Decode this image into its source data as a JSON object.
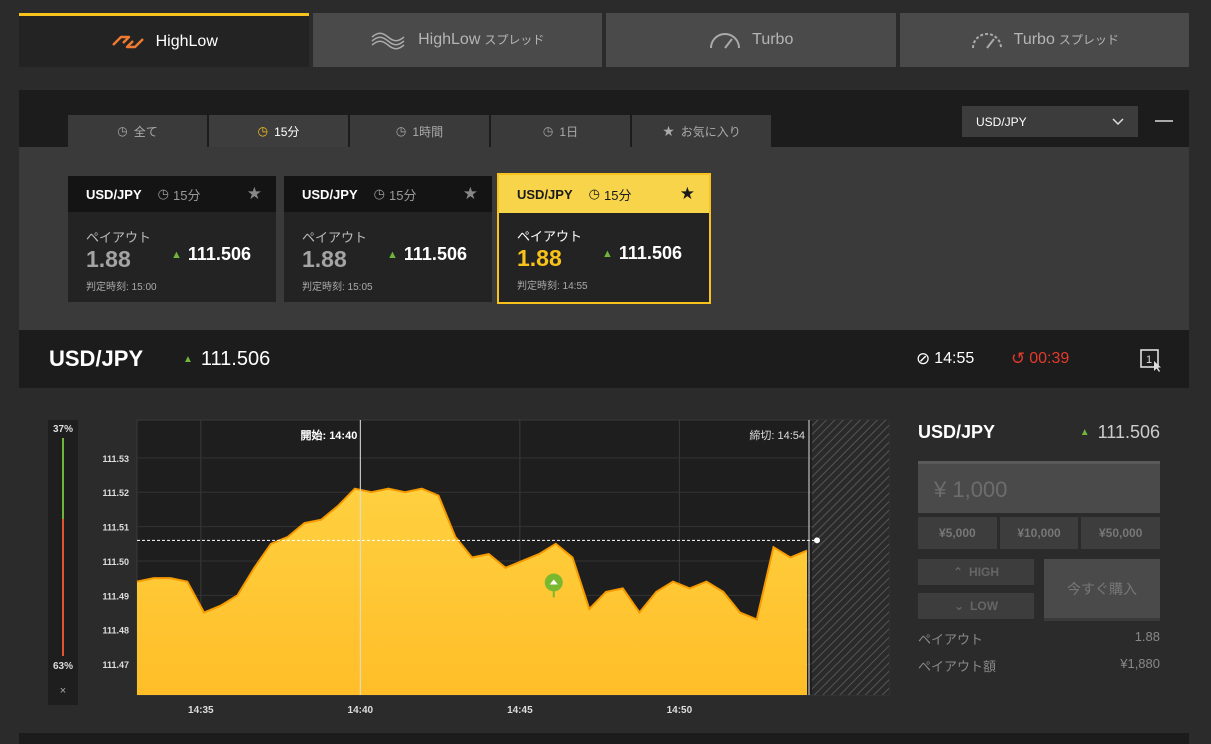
{
  "top_tabs": [
    {
      "label": "HighLow",
      "suffix": "",
      "icon": "highlow-icon",
      "active": true
    },
    {
      "label": "HighLow",
      "suffix": "スプレッド",
      "icon": "highlow-spread-icon",
      "active": false
    },
    {
      "label": "Turbo",
      "suffix": "",
      "icon": "turbo-speedometer-icon",
      "active": false
    },
    {
      "label": "Turbo",
      "suffix": "スプレッド",
      "icon": "turbo-spread-speedometer-icon",
      "active": false
    }
  ],
  "filter_tabs": [
    {
      "label": "全て",
      "icon": "clock-icon"
    },
    {
      "label": "15分",
      "icon": "clock-icon",
      "active": true
    },
    {
      "label": "1時間",
      "icon": "clock-icon"
    },
    {
      "label": "1日",
      "icon": "clock-icon"
    },
    {
      "label": "お気に入り",
      "icon": "star-icon"
    }
  ],
  "pair_select": {
    "value": "USD/JPY"
  },
  "cards": [
    {
      "pair": "USD/JPY",
      "duration": "15分",
      "payout_label": "ペイアウト",
      "payout": "1.88",
      "rate": "111.506",
      "expiry": "判定時刻: 15:00"
    },
    {
      "pair": "USD/JPY",
      "duration": "15分",
      "payout_label": "ペイアウト",
      "payout": "1.88",
      "rate": "111.506",
      "expiry": "判定時刻: 15:05"
    },
    {
      "pair": "USD/JPY",
      "duration": "15分",
      "payout_label": "ペイアウト",
      "payout": "1.88",
      "rate": "111.506",
      "expiry": "判定時刻: 14:55",
      "selected": true
    }
  ],
  "infobar": {
    "pair": "USD/JPY",
    "rate": "111.506",
    "close_time": "14:55",
    "remaining": "00:39"
  },
  "gauge": {
    "high_pct": "37%",
    "low_pct": "63%",
    "high_fraction": 0.37,
    "close": "×"
  },
  "chart_data": {
    "type": "area",
    "series": [
      {
        "values": [
          111.494,
          111.495,
          111.495,
          111.494,
          111.485,
          111.487,
          111.49,
          111.498,
          111.505,
          111.507,
          111.511,
          111.512,
          111.516,
          111.521,
          111.52,
          111.521,
          111.52,
          111.521,
          111.519,
          111.507,
          111.501,
          111.502,
          111.498,
          111.5,
          111.502,
          111.505,
          111.501,
          111.486,
          111.491,
          111.492,
          111.485,
          111.491,
          111.494,
          111.492,
          111.494,
          111.491,
          111.485,
          111.483,
          111.504,
          111.501,
          111.503
        ]
      }
    ],
    "x_start": "14:33",
    "x_end": "14:54",
    "xticks": [
      "14:35",
      "14:40",
      "14:45",
      "14:50"
    ],
    "yticks": [
      "111.53",
      "111.52",
      "111.51",
      "111.50",
      "111.49",
      "111.48",
      "111.47"
    ],
    "ylim": [
      111.461,
      111.541
    ],
    "current_rate": 111.506,
    "start_label": "開始: 14:40",
    "end_label": "締切: 14:54",
    "fill_color": "#ffc832",
    "line_color": "#f59a00"
  },
  "trade": {
    "pair": "USD/JPY",
    "rate": "111.506",
    "amount_placeholder": "¥ 1,000",
    "presets": [
      "¥5,000",
      "¥10,000",
      "¥50,000"
    ],
    "high_label": "HIGH",
    "low_label": "LOW",
    "buy_label": "今すぐ購入",
    "payout_label": "ペイアウト",
    "payout_value": "1.88",
    "payout_amount_label": "ペイアウト額",
    "payout_amount_value": "¥1,880"
  },
  "colors": {
    "accent": "#f7c21b",
    "up": "#6fb53a",
    "down": "#e33a2b"
  }
}
